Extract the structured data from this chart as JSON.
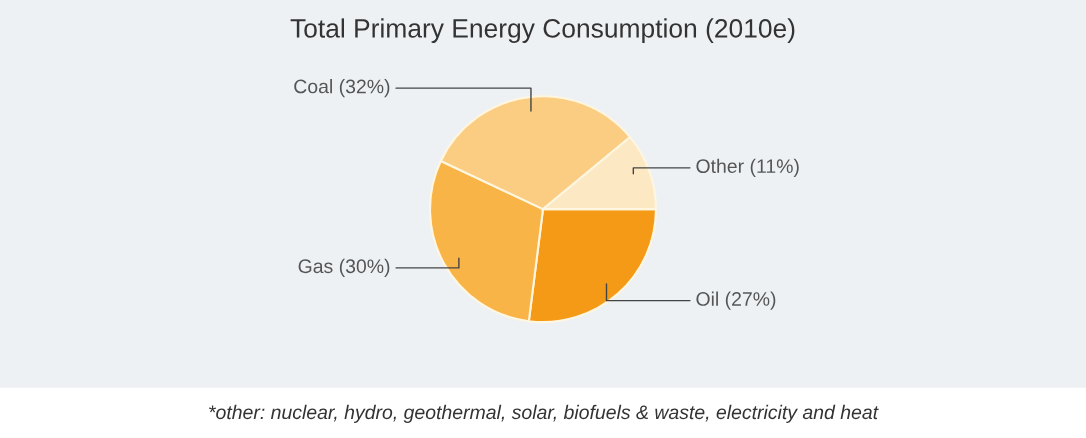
{
  "chart_data": {
    "type": "pie",
    "title": "Total Primary Energy Consumption (2010e)",
    "categories": [
      "Oil (27%)",
      "Gas (30%)",
      "Coal (32%)",
      "Other (11%)"
    ],
    "values": [
      27,
      30,
      32,
      11
    ],
    "colors": [
      "#f59a16",
      "#f8b446",
      "#fbcd83",
      "#fde8c4"
    ],
    "annotations": [
      "*other: nuclear, hydro, geothermal, solar, biofuels & waste, electricity and heat"
    ]
  }
}
